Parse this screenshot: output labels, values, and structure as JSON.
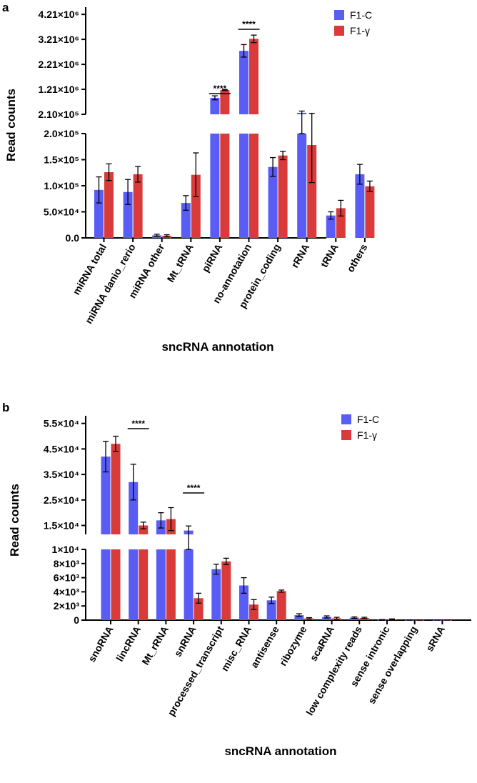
{
  "figure": {
    "colors": {
      "F1-C": "#5a5cf6",
      "F1-γ": "#d93a3a",
      "axis": "#000000"
    }
  },
  "chart_data": [
    {
      "type": "bar",
      "panel_label": "a",
      "title": "",
      "xlabel": "sncRNA annotation",
      "ylabel": "Read counts",
      "legend_position": "top-right",
      "grid": false,
      "broken_y_axis": true,
      "categories": [
        "miRNA total",
        "miRNA danio_rerio",
        "miRNA other",
        "Mt_tRNA",
        "piRNA",
        "no-annotation",
        "protein_coding",
        "rRNA",
        "tRNA",
        "others"
      ],
      "series": [
        {
          "name": "F1-C",
          "values": [
            92000,
            88000,
            5000,
            67000,
            870000,
            2750000,
            136000,
            270000,
            43000,
            122000
          ],
          "errors": [
            25000,
            24000,
            2000,
            14000,
            80000,
            250000,
            18000,
            70000,
            7000,
            19000
          ]
        },
        {
          "name": "F1-γ",
          "values": [
            126000,
            122000,
            4000,
            121000,
            1180000,
            3230000,
            158000,
            178000,
            57000,
            99000
          ],
          "errors": [
            16000,
            15000,
            2000,
            42000,
            20000,
            150000,
            8000,
            72000,
            15000,
            10000
          ]
        }
      ],
      "segments": [
        {
          "ylim": [
            0,
            200000
          ],
          "ticks": [
            0,
            50000,
            100000,
            150000,
            200000
          ],
          "tick_labels": [
            "0.0",
            "5.0×10⁴",
            "1.0×10⁵",
            "1.5×10⁵",
            "2.0×10⁵"
          ]
        },
        {
          "ylim": [
            210000,
            4500000
          ],
          "ticks": [
            210000,
            1210000,
            2210000,
            3210000,
            4210000
          ],
          "tick_labels": [
            "2.10×10⁵",
            "1.21×10⁶",
            "2.21×10⁶",
            "3.21×10⁶",
            "4.21×10⁶"
          ]
        }
      ],
      "significance": [
        {
          "category": "piRNA",
          "label": "****"
        },
        {
          "category": "no-annotation",
          "label": "****"
        }
      ]
    },
    {
      "type": "bar",
      "panel_label": "b",
      "title": "",
      "xlabel": "sncRNA annotation",
      "ylabel": "Read counts",
      "legend_position": "top-right",
      "grid": false,
      "broken_y_axis": true,
      "categories": [
        "snoRNA",
        "lincRNA",
        "Mt_rRNA",
        "snRNA",
        "processed_transcript",
        "misc_RNA",
        "antisense",
        "ribozyme",
        "scaRNA",
        "low complexity reads",
        "sense intronic",
        "sense overlapping",
        "sRNA"
      ],
      "series": [
        {
          "name": "F1-C",
          "values": [
            42000,
            32000,
            17000,
            13000,
            7200,
            4900,
            2800,
            700,
            450,
            350,
            50,
            20,
            10
          ],
          "errors": [
            6000,
            7000,
            3000,
            1800,
            700,
            1100,
            450,
            200,
            150,
            100,
            30,
            10,
            5
          ]
        },
        {
          "name": "F1-γ",
          "values": [
            47000,
            15000,
            17500,
            3100,
            8300,
            2200,
            4100,
            250,
            250,
            300,
            120,
            20,
            10
          ],
          "errors": [
            3000,
            1300,
            4500,
            700,
            450,
            700,
            150,
            100,
            150,
            100,
            50,
            10,
            5
          ]
        }
      ],
      "segments": [
        {
          "ylim": [
            0,
            10000
          ],
          "ticks": [
            0,
            2000,
            4000,
            6000,
            8000,
            10000
          ],
          "tick_labels": [
            "0",
            "2×10³",
            "4×10³",
            "6×10³",
            "8×10³",
            "1×10⁴"
          ]
        },
        {
          "ylim": [
            11500,
            58000
          ],
          "ticks": [
            15000,
            25000,
            35000,
            45000,
            55000
          ],
          "tick_labels": [
            "1.5×10⁴",
            "2.5×10⁴",
            "3.5×10⁴",
            "4.5×10⁴",
            "5.5×10⁴"
          ]
        }
      ],
      "significance": [
        {
          "category": "lincRNA",
          "label": "****"
        },
        {
          "category": "snRNA",
          "label": "****"
        }
      ]
    }
  ]
}
